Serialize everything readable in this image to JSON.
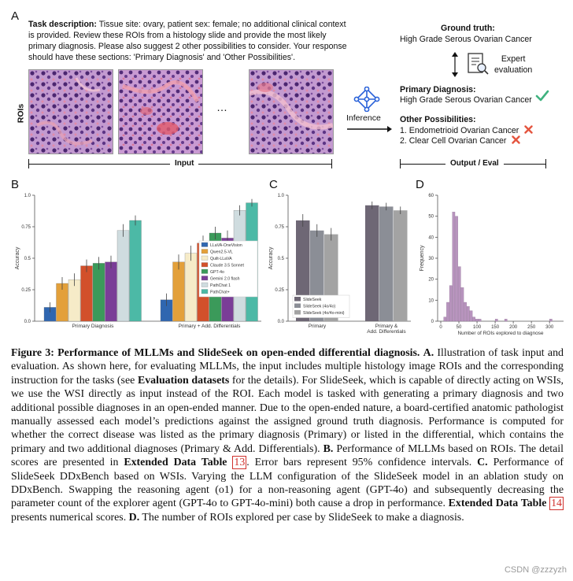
{
  "panel_letters": {
    "a": "A",
    "b": "B",
    "c": "C",
    "d": "D"
  },
  "panel_a": {
    "task_prefix": "Task description:",
    "task_text": " Tissue site: ovary, patient sex: female; no additional clinical context is provided. Review these ROIs from a histology slide and provide the most likely primary diagnosis. Please also suggest 2 other possibilities to consider. Your response should have these sections: 'Primary Diagnosis' and 'Other Possibilities'.",
    "rois_label": "ROIs",
    "ellipsis": "…",
    "input_label": "Input",
    "inference_label": "Inference",
    "ground_truth_title": "Ground truth:",
    "ground_truth_value": "High Grade Serous Ovarian Cancer",
    "expert_label_1": "Expert",
    "expert_label_2": "evaluation",
    "primary_title": "Primary Diagnosis:",
    "primary_value": "High Grade Serous Ovarian Cancer",
    "other_title": "Other Possibilities:",
    "other_items": [
      "1. Endometrioid Ovarian Cancer",
      "2. Clear Cell Ovarian Cancer"
    ],
    "output_label": "Output / Eval",
    "check_icon": "check-icon",
    "cross_icon": "cross-icon",
    "colors": {
      "check": "#3fb27f",
      "cross": "#e4553f",
      "network": "#2b63d9"
    }
  },
  "chart_data": [
    {
      "type": "bar",
      "panel": "B",
      "categories": [
        "Primary Diagnosis",
        "Primary + Add. Differentials"
      ],
      "ylabel": "Accuracy",
      "ylim": [
        0,
        1.0
      ],
      "yticks": [
        "0.0",
        "0.25",
        "0.5",
        "0.75",
        "1.0"
      ],
      "legend_position": "inside-right",
      "series": [
        {
          "name": "LLaVA-OneVision",
          "color": "#2f66b0",
          "values": [
            0.11,
            0.17
          ],
          "err": [
            0.04,
            0.05
          ]
        },
        {
          "name": "Qwen2.5-VL",
          "color": "#e3a03a",
          "values": [
            0.3,
            0.47
          ],
          "err": [
            0.05,
            0.06
          ]
        },
        {
          "name": "Quilt-LLaVA",
          "color": "#f6ebc8",
          "values": [
            0.33,
            0.54
          ],
          "err": [
            0.05,
            0.06
          ]
        },
        {
          "name": "Claude 3.5 Sonnet",
          "color": "#d2502b",
          "values": [
            0.44,
            0.62
          ],
          "err": [
            0.05,
            0.06
          ]
        },
        {
          "name": "GPT-4o",
          "color": "#3b9a5a",
          "values": [
            0.46,
            0.7
          ],
          "err": [
            0.05,
            0.05
          ]
        },
        {
          "name": "Gemini 2.0 flash",
          "color": "#7a3d97",
          "values": [
            0.47,
            0.66
          ],
          "err": [
            0.05,
            0.06
          ]
        },
        {
          "name": "PathChat 1",
          "color": "#cfdcdf",
          "values": [
            0.72,
            0.88
          ],
          "err": [
            0.05,
            0.04
          ]
        },
        {
          "name": "PathChat+",
          "color": "#4cb9a6",
          "values": [
            0.8,
            0.94
          ],
          "err": [
            0.04,
            0.03
          ]
        }
      ]
    },
    {
      "type": "bar",
      "panel": "C",
      "categories": [
        "Primary",
        "Primary &\nAdd. Differentials"
      ],
      "ylabel": "Accuracy",
      "ylim": [
        0,
        1.0
      ],
      "yticks": [
        "0.0",
        "0.25",
        "0.5",
        "0.75",
        "1.0"
      ],
      "legend_position": "bottom-left",
      "series": [
        {
          "name": "SlideSeek",
          "color": "#6e6775",
          "values": [
            0.8,
            0.92
          ],
          "err": [
            0.05,
            0.03
          ]
        },
        {
          "name": "SlideSeek (4o/4o)",
          "color": "#8b8e96",
          "values": [
            0.72,
            0.91
          ],
          "err": [
            0.05,
            0.03
          ]
        },
        {
          "name": "SlideSeek (4o/4o-mini)",
          "color": "#a3a3a3",
          "values": [
            0.69,
            0.88
          ],
          "err": [
            0.05,
            0.03
          ]
        }
      ]
    },
    {
      "type": "histogram",
      "panel": "D",
      "xlabel": "Number of ROIs explored to diagnose",
      "ylabel": "Frequency",
      "xlim": [
        0,
        330
      ],
      "ylim": [
        0,
        60
      ],
      "xticks": [
        "0",
        "50",
        "100",
        "150",
        "200",
        "250",
        "300"
      ],
      "yticks": [
        "0",
        "10",
        "20",
        "30",
        "40",
        "50",
        "60"
      ],
      "color": "#b894be",
      "bins": [
        {
          "x0": 8,
          "x1": 16,
          "count": 2
        },
        {
          "x0": 16,
          "x1": 24,
          "count": 9
        },
        {
          "x0": 24,
          "x1": 32,
          "count": 17
        },
        {
          "x0": 32,
          "x1": 40,
          "count": 52
        },
        {
          "x0": 40,
          "x1": 48,
          "count": 50
        },
        {
          "x0": 48,
          "x1": 56,
          "count": 26
        },
        {
          "x0": 56,
          "x1": 64,
          "count": 16
        },
        {
          "x0": 64,
          "x1": 72,
          "count": 9
        },
        {
          "x0": 72,
          "x1": 80,
          "count": 7
        },
        {
          "x0": 80,
          "x1": 88,
          "count": 5
        },
        {
          "x0": 88,
          "x1": 96,
          "count": 2
        },
        {
          "x0": 96,
          "x1": 104,
          "count": 1
        },
        {
          "x0": 104,
          "x1": 112,
          "count": 1
        },
        {
          "x0": 150,
          "x1": 158,
          "count": 1
        },
        {
          "x0": 176,
          "x1": 184,
          "count": 1
        },
        {
          "x0": 300,
          "x1": 308,
          "count": 1
        }
      ]
    }
  ],
  "caption": {
    "title": "Figure 3: Performance of MLLMs and SlideSeek on open-ended differential diagnosis.",
    "a_label": "A.",
    "a_text_1": " Illustration of task input and evaluation. As shown here, for evaluating MLLMs, the input includes multiple histology image ROIs and the corresponding instruction for the tasks (see ",
    "a_bold": "Evaluation datasets",
    "a_text_2": " for the details). For SlideSeek, which is capable of directly acting on WSIs, we use the WSI directly as input instead of the ROI. Each model is tasked with generating a primary diagnosis and two additional possible diagnoses in an open-ended manner. Due to the open-ended nature, a board-certified anatomic pathologist manually assessed each model’s predictions against the assigned ground truth diagnosis. Performance is computed for whether the correct disease was listed as the primary diagnosis (Primary) or listed in the differential, which contains the primary and two additional diagnoses (Primary & Add. Differentials). ",
    "b_label": "B.",
    "b_text_1": " Performance of MLLMs based on ROIs. The detail scores are presented in ",
    "b_bold": "Extended Data Table ",
    "b_ref": "13",
    "b_text_2": ". Error bars represent 95% confidence intervals. ",
    "c_label": "C.",
    "c_text_1": " Performance of SlideSeek DDxBench based on WSIs. Varying the LLM configuration of the SlideSeek model in an ablation study on DDxBench. Swapping the reasoning agent (o1) for a non-reasoning agent (GPT-4o) and subsequently decreasing the parameter count of the explorer agent (GPT-4o to GPT-4o-mini) both cause a drop in performance. ",
    "c_bold": "Extended Data Table ",
    "c_ref": "14",
    "c_text_2": " presents numerical scores. ",
    "d_label": "D.",
    "d_text": " The number of ROIs explored per case by SlideSeek to make a diagnosis."
  },
  "watermark": "CSDN @zzzyzh"
}
